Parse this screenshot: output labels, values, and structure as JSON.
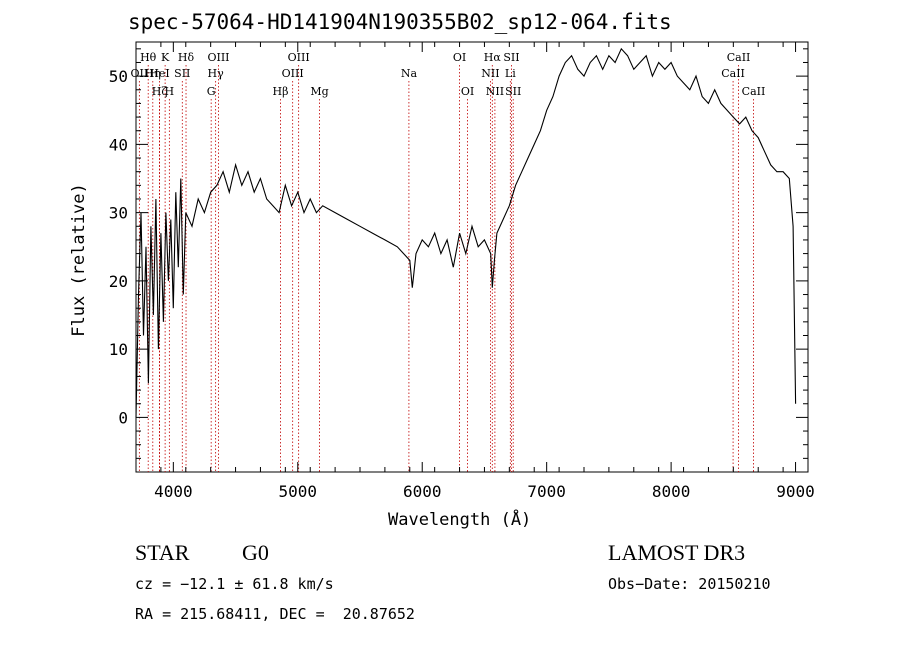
{
  "chart_data": {
    "type": "line",
    "title": "spec-57064-HD141904N190355B02_sp12-064.fits",
    "xlabel": "Wavelength (Å)",
    "ylabel": "Flux (relative)",
    "xlim": [
      3700,
      9100
    ],
    "ylim": [
      -8,
      55
    ],
    "x_ticks": [
      4000,
      5000,
      6000,
      7000,
      8000,
      9000
    ],
    "y_ticks": [
      0,
      10,
      20,
      30,
      40,
      50
    ],
    "grid": false,
    "series": [
      {
        "x": [
          3700,
          3720,
          3740,
          3760,
          3780,
          3800,
          3820,
          3840,
          3860,
          3880,
          3900,
          3920,
          3940,
          3960,
          3980,
          4000,
          4020,
          4040,
          4060,
          4080,
          4100,
          4150,
          4200,
          4250,
          4300,
          4350,
          4400,
          4450,
          4500,
          4550,
          4600,
          4650,
          4700,
          4750,
          4800,
          4850,
          4900,
          4950,
          5000,
          5050,
          5100,
          5150,
          5200,
          5300,
          5400,
          5500,
          5600,
          5700,
          5800,
          5850,
          5900,
          5920,
          5950,
          6000,
          6050,
          6100,
          6150,
          6200,
          6250,
          6300,
          6350,
          6400,
          6450,
          6500,
          6550,
          6563,
          6580,
          6600,
          6650,
          6700,
          6750,
          6800,
          6850,
          6900,
          6950,
          7000,
          7050,
          7100,
          7150,
          7200,
          7250,
          7300,
          7350,
          7400,
          7450,
          7500,
          7550,
          7600,
          7650,
          7700,
          7750,
          7800,
          7850,
          7900,
          7950,
          8000,
          8050,
          8100,
          8150,
          8200,
          8250,
          8300,
          8350,
          8400,
          8450,
          8500,
          8550,
          8600,
          8650,
          8700,
          8750,
          8800,
          8850,
          8900,
          8950,
          8980,
          9000
        ],
        "y": [
          0,
          18,
          30,
          12,
          25,
          5,
          28,
          15,
          32,
          10,
          27,
          14,
          30,
          20,
          29,
          16,
          33,
          22,
          35,
          18,
          30,
          28,
          32,
          30,
          33,
          34,
          36,
          33,
          37,
          34,
          36,
          33,
          35,
          32,
          31,
          30,
          34,
          31,
          33,
          30,
          32,
          30,
          31,
          30,
          29,
          28,
          27,
          26,
          25,
          24,
          23,
          19,
          24,
          26,
          25,
          27,
          24,
          26,
          22,
          27,
          24,
          28,
          25,
          26,
          24,
          19,
          23,
          27,
          29,
          31,
          34,
          36,
          38,
          40,
          42,
          45,
          47,
          50,
          52,
          53,
          51,
          50,
          52,
          53,
          51,
          53,
          52,
          54,
          53,
          51,
          52,
          53,
          50,
          52,
          51,
          52,
          50,
          49,
          48,
          50,
          47,
          46,
          48,
          46,
          45,
          44,
          43,
          44,
          42,
          41,
          39,
          37,
          36,
          36,
          35,
          28,
          2
        ]
      }
    ],
    "spectral_lines": [
      {
        "label": "Hθ",
        "wavelength": 3798,
        "row": 1
      },
      {
        "label": "K",
        "wavelength": 3934,
        "row": 1
      },
      {
        "label": "Hδ",
        "wavelength": 4102,
        "row": 1
      },
      {
        "label": "OIII",
        "wavelength": 4363,
        "row": 1
      },
      {
        "label": "OIII",
        "wavelength": 5007,
        "row": 1
      },
      {
        "label": "OI",
        "wavelength": 6300,
        "row": 1
      },
      {
        "label": "Hα",
        "wavelength": 6563,
        "row": 1
      },
      {
        "label": "SII",
        "wavelength": 6717,
        "row": 1
      },
      {
        "label": "CaII",
        "wavelength": 8542,
        "row": 1
      },
      {
        "label": "OII",
        "wavelength": 3727,
        "row": 2
      },
      {
        "label": "Hη",
        "wavelength": 3835,
        "row": 2
      },
      {
        "label": "HeI",
        "wavelength": 3889,
        "row": 2
      },
      {
        "label": "SII",
        "wavelength": 4072,
        "row": 2
      },
      {
        "label": "Hγ",
        "wavelength": 4340,
        "row": 2
      },
      {
        "label": "OIII",
        "wavelength": 4959,
        "row": 2
      },
      {
        "label": "Na",
        "wavelength": 5893,
        "row": 2
      },
      {
        "label": "NII",
        "wavelength": 6548,
        "row": 2
      },
      {
        "label": "Li",
        "wavelength": 6708,
        "row": 2
      },
      {
        "label": "CaII",
        "wavelength": 8498,
        "row": 2
      },
      {
        "label": "Hζ",
        "wavelength": 3889,
        "row": 3
      },
      {
        "label": "H",
        "wavelength": 3968,
        "row": 3
      },
      {
        "label": "G",
        "wavelength": 4304,
        "row": 3
      },
      {
        "label": "Hβ",
        "wavelength": 4861,
        "row": 3
      },
      {
        "label": "Mg",
        "wavelength": 5175,
        "row": 3
      },
      {
        "label": "OI",
        "wavelength": 6364,
        "row": 3
      },
      {
        "label": "NII",
        "wavelength": 6584,
        "row": 3
      },
      {
        "label": "SII",
        "wavelength": 6731,
        "row": 3
      },
      {
        "label": "CaII",
        "wavelength": 8662,
        "row": 3
      }
    ]
  },
  "footer": {
    "class": "STAR",
    "subclass": "G0",
    "survey": "LAMOST DR3",
    "cz": "cz = −12.1 ± 61.8 km/s",
    "obs_date": "Obs−Date: 20150210",
    "coords": "RA = 215.68411, DEC =  20.87652"
  }
}
